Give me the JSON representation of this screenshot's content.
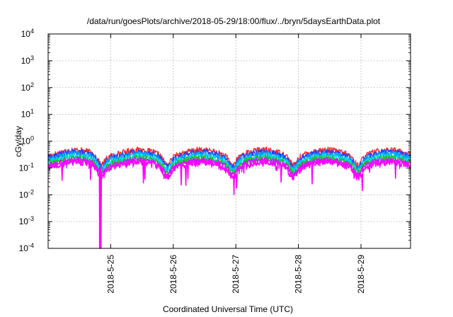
{
  "chart_data": {
    "type": "line",
    "title": "/data/run/goesPlots/archive/2018-05-29/18:00/flux/../bryn/5daysEarthData.plot",
    "xlabel": "Coordinated Universal Time (UTC)",
    "ylabel": "cGy/day",
    "y_scale": "log",
    "ylim": [
      0.0001,
      10000
    ],
    "xlim": [
      "2018-05-24T00:00",
      "2018-05-29T19:00"
    ],
    "grid": true,
    "legend": "none",
    "y_ticks": [
      {
        "base": "10",
        "exp": "-4",
        "value": 0.0001
      },
      {
        "base": "10",
        "exp": "-3",
        "value": 0.001
      },
      {
        "base": "10",
        "exp": "-2",
        "value": 0.01
      },
      {
        "base": "10",
        "exp": "-1",
        "value": 0.1
      },
      {
        "base": "10",
        "exp": "0",
        "value": 1
      },
      {
        "base": "10",
        "exp": "1",
        "value": 10
      },
      {
        "base": "10",
        "exp": "2",
        "value": 100
      },
      {
        "base": "10",
        "exp": "3",
        "value": 1000
      },
      {
        "base": "10",
        "exp": "4",
        "value": 10000
      }
    ],
    "x_ticks": [
      {
        "label": "2018-5-25",
        "date": "2018-05-25T00:00"
      },
      {
        "label": "2018-5-26",
        "date": "2018-05-26T00:00"
      },
      {
        "label": "2018-5-27",
        "date": "2018-05-27T00:00"
      },
      {
        "label": "2018-5-28",
        "date": "2018-05-28T00:00"
      },
      {
        "label": "2018-5-29",
        "date": "2018-05-29T00:00"
      }
    ],
    "series": [
      {
        "color": "#ff2a2a",
        "level": 0.38
      },
      {
        "color": "#2040ff",
        "level": 0.32
      },
      {
        "color": "#00a0ff",
        "level": 0.27
      },
      {
        "color": "#00dddd",
        "level": 0.22
      },
      {
        "color": "#20c020",
        "level": 0.19
      },
      {
        "color": "#c020ff",
        "level": 0.165
      },
      {
        "color": "#ff00ff",
        "level": 0.14,
        "dropout_date": "2018-05-24T20:00"
      }
    ]
  }
}
